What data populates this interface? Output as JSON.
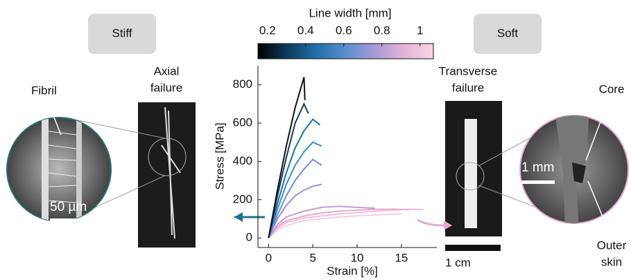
{
  "chart_data": {
    "type": "line",
    "x_label": "Strain [%]",
    "y_label": "Stress [MPa]",
    "xlim": [
      -1.2,
      19
    ],
    "ylim": [
      -50,
      900
    ],
    "xticks": [
      0,
      5,
      10,
      15
    ],
    "yticks": [
      0,
      200,
      400,
      600,
      800
    ],
    "colorbar": {
      "label": "Line width [mm]",
      "lim": [
        0.15,
        1.07
      ],
      "ticks": [
        0.2,
        0.4,
        0.6,
        0.8,
        1
      ],
      "colors": [
        "#000000",
        "#0e3a5a",
        "#1f6fa8",
        "#5b8fd0",
        "#a89ad8",
        "#e4b3d8",
        "#fbd3e6"
      ]
    },
    "series": [
      {
        "color": "#111111",
        "x": [
          0,
          1,
          2,
          3,
          3.5,
          4,
          4.1
        ],
        "values": [
          0,
          250,
          480,
          680,
          760,
          840,
          720
        ]
      },
      {
        "color": "#0e3a5a",
        "x": [
          0,
          1,
          2,
          3,
          4,
          4.5
        ],
        "values": [
          0,
          220,
          420,
          600,
          700,
          650
        ]
      },
      {
        "color": "#1d6fa5",
        "x": [
          0,
          1,
          2,
          3,
          4,
          5,
          5.8
        ],
        "values": [
          0,
          180,
          340,
          470,
          560,
          620,
          590
        ]
      },
      {
        "color": "#3a8cc4",
        "x": [
          0,
          1,
          2,
          3,
          4,
          5,
          6
        ],
        "values": [
          0,
          150,
          280,
          380,
          450,
          500,
          480
        ]
      },
      {
        "color": "#6c8fd0",
        "x": [
          0,
          1,
          2,
          3,
          4,
          5,
          6
        ],
        "values": [
          0,
          120,
          220,
          300,
          360,
          410,
          380
        ]
      },
      {
        "color": "#9a8fd6",
        "x": [
          0,
          1,
          2,
          3,
          4,
          5,
          6
        ],
        "values": [
          0,
          100,
          170,
          220,
          250,
          270,
          280
        ]
      },
      {
        "color": "#c79ad6",
        "x": [
          0,
          1,
          2,
          4,
          6,
          8,
          10,
          12
        ],
        "values": [
          0,
          70,
          110,
          140,
          160,
          165,
          160,
          155
        ]
      },
      {
        "color": "#e6a9cf",
        "x": [
          0,
          1,
          2,
          4,
          6,
          8,
          10,
          12,
          14,
          16
        ],
        "values": [
          0,
          60,
          90,
          115,
          130,
          140,
          145,
          150,
          150,
          148
        ]
      },
      {
        "color": "#f4bcd8",
        "x": [
          0,
          1,
          2,
          4,
          8,
          12,
          16,
          17.5
        ],
        "values": [
          0,
          50,
          80,
          105,
          125,
          140,
          150,
          148
        ]
      },
      {
        "color": "#f8cde1",
        "x": [
          0,
          1,
          2,
          4,
          8,
          12,
          15
        ],
        "values": [
          0,
          40,
          65,
          90,
          110,
          120,
          125
        ]
      }
    ],
    "annotations": [
      "Stiff",
      "Soft",
      "Axial",
      "failure",
      "Transverse",
      "failure",
      "Fibril",
      "50 µm",
      "1 mm",
      "Core",
      "Outer",
      "skin",
      "1 cm"
    ]
  }
}
